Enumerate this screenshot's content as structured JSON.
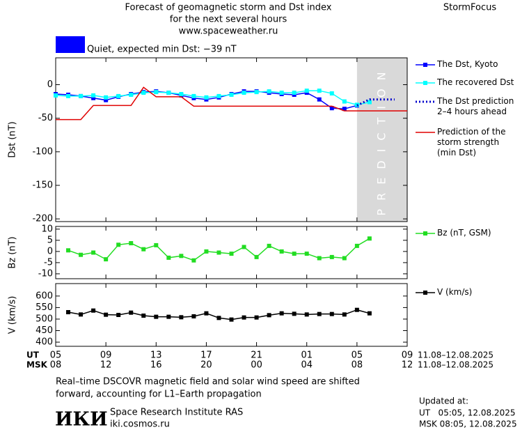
{
  "header": {
    "title_lines": [
      "Forecast of geomagnetic storm and Dst index",
      "for the next several hours",
      "www.spaceweather.ru"
    ],
    "brand": "StormFocus",
    "status": {
      "text": "Quiet, expected min Dst: −39 nT",
      "color": "#0000ff"
    }
  },
  "x_axis": {
    "xlim": [
      0,
      28
    ],
    "ut_label": "UT",
    "msk_label": "MSK",
    "ut_ticks": [
      {
        "value": 0,
        "label": "05"
      },
      {
        "value": 4,
        "label": "09"
      },
      {
        "value": 8,
        "label": "13"
      },
      {
        "value": 12,
        "label": "17"
      },
      {
        "value": 16,
        "label": "21"
      },
      {
        "value": 20,
        "label": "01"
      },
      {
        "value": 24,
        "label": "05"
      },
      {
        "value": 28,
        "label": "09"
      }
    ],
    "msk_ticks": [
      {
        "value": 0,
        "label": "08"
      },
      {
        "value": 4,
        "label": "12"
      },
      {
        "value": 8,
        "label": "16"
      },
      {
        "value": 12,
        "label": "20"
      },
      {
        "value": 16,
        "label": "00"
      },
      {
        "value": 20,
        "label": "04"
      },
      {
        "value": 24,
        "label": "08"
      },
      {
        "value": 28,
        "label": "12"
      }
    ],
    "ut_range": "11.08–12.08.2025",
    "msk_range": "11.08–12.08.2025"
  },
  "chart_data": [
    {
      "type": "line",
      "ylabel": "Dst (nT)",
      "ylim": [
        -204,
        40
      ],
      "yticks": [
        0,
        -50,
        -100,
        -150,
        -200
      ],
      "highlight": {
        "x": [
          24,
          28
        ],
        "label": "PREDICTION",
        "color": "#d9d9d9"
      },
      "series": [
        {
          "name": "The Dst, Kyoto",
          "color": "#0000ff",
          "marker": "square",
          "x": [
            0,
            1,
            2,
            3,
            4,
            5,
            6,
            7,
            8,
            9,
            10,
            11,
            12,
            13,
            14,
            15,
            16,
            17,
            18,
            19,
            20,
            21,
            22,
            23,
            24
          ],
          "values": [
            -14,
            -15,
            -17,
            -20,
            -23,
            -18,
            -14,
            -11,
            -10,
            -12,
            -16,
            -20,
            -22,
            -19,
            -14,
            -10,
            -10,
            -12,
            -14,
            -15,
            -12,
            -22,
            -35,
            -36,
            -31
          ]
        },
        {
          "name": "The recovered Dst",
          "color": "#00ffff",
          "marker": "square",
          "x": [
            0,
            1,
            2,
            3,
            4,
            5,
            6,
            7,
            8,
            9,
            10,
            11,
            12,
            13,
            14,
            15,
            16,
            17,
            18,
            19,
            20,
            21,
            22,
            23,
            24,
            25
          ],
          "values": [
            -16,
            -17,
            -17,
            -16,
            -19,
            -17,
            -15,
            -12,
            -11,
            -12,
            -14,
            -17,
            -19,
            -17,
            -15,
            -12,
            -11,
            -10,
            -12,
            -12,
            -9,
            -9,
            -13,
            -25,
            -30,
            -26
          ]
        },
        {
          "name": "The Dst prediction\n2–4 hours ahead",
          "color": "#0000cc",
          "style": "dotted",
          "x": [
            24,
            25,
            26,
            27
          ],
          "values": [
            -31,
            -22,
            -22,
            -22
          ]
        },
        {
          "name": "Prediction of the\nstorm strength\n(min Dst)",
          "color": "#e00000",
          "x": [
            0,
            2,
            3,
            6,
            7,
            8,
            10,
            11,
            22,
            23,
            28
          ],
          "values": [
            -52,
            -52,
            -31,
            -31,
            -4,
            -18,
            -18,
            -32,
            -32,
            -39,
            -39
          ]
        }
      ]
    },
    {
      "type": "line",
      "ylabel": "Bz (nT)",
      "ylim": [
        -12.2,
        11.2
      ],
      "yticks": [
        10,
        5,
        0,
        -5,
        -10
      ],
      "series": [
        {
          "name": "Bz (nT, GSM)",
          "color": "#22dd22",
          "marker": "square",
          "x": [
            1,
            2,
            3,
            4,
            5,
            6,
            7,
            8,
            9,
            10,
            11,
            12,
            13,
            14,
            15,
            16,
            17,
            18,
            19,
            20,
            21,
            22,
            23,
            24,
            25
          ],
          "values": [
            0.5,
            -1.5,
            -0.5,
            -3.5,
            3,
            3.7,
            1,
            2.8,
            -2.8,
            -2,
            -4,
            0,
            -0.5,
            -1,
            2,
            -2.5,
            2.5,
            0,
            -1,
            -1,
            -3,
            -2.5,
            -3,
            2.5,
            5.8
          ]
        }
      ]
    },
    {
      "type": "line",
      "ylabel": "V (km/s)",
      "ylim": [
        382,
        654
      ],
      "yticks": [
        400,
        450,
        500,
        550,
        600
      ],
      "series": [
        {
          "name": "V (km/s)",
          "color": "#000000",
          "marker": "square",
          "x": [
            1,
            2,
            3,
            4,
            5,
            6,
            7,
            8,
            9,
            10,
            11,
            12,
            13,
            14,
            15,
            16,
            17,
            18,
            19,
            20,
            21,
            22,
            23,
            24,
            25
          ],
          "values": [
            530,
            520,
            537,
            519,
            518,
            528,
            515,
            510,
            510,
            508,
            512,
            525,
            505,
            498,
            507,
            507,
            517,
            525,
            523,
            520,
            522,
            522,
            520,
            540,
            525
          ]
        }
      ]
    }
  ],
  "footer": {
    "note_lines": [
      "Real–time DSCOVR magnetic field and solar wind speed are shifted",
      "forward, accounting for L1–Earth propagation"
    ],
    "logo": "ИКИ",
    "institute": "Space Research Institute RAS",
    "site": "iki.cosmos.ru",
    "updated_label": "Updated at:",
    "updated_ut": "UT   05:05, 12.08.2025",
    "updated_msk": "MSK 08:05, 12.08.2025"
  }
}
